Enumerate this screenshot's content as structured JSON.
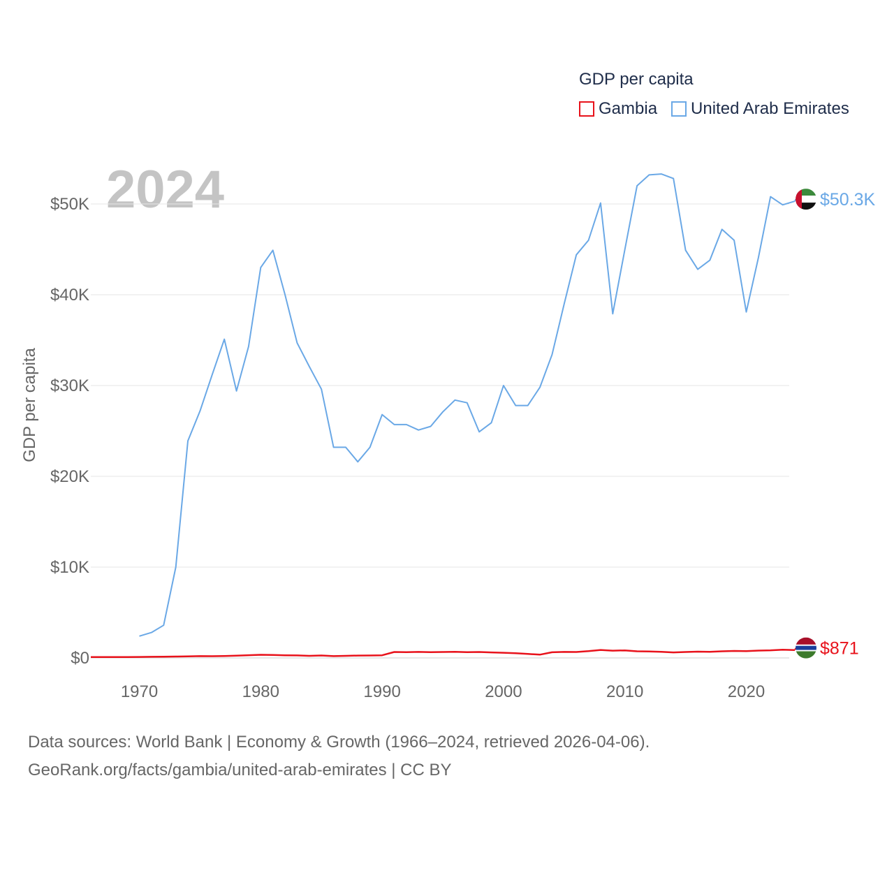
{
  "legend": {
    "title": "GDP per capita",
    "items": [
      {
        "label": "Gambia",
        "color": "#e8121b"
      },
      {
        "label": "United Arab Emirates",
        "color": "#6aa8e6"
      }
    ]
  },
  "watermark_year": "2024",
  "footer": {
    "line1": "Data sources: World Bank | Economy & Growth (1966–2024, retrieved 2026-04-06).",
    "line2": "GeoRank.org/facts/gambia/united-arab-emirates | CC BY"
  },
  "chart_data": {
    "type": "line",
    "title": "GDP per capita",
    "ylabel": "GDP per capita",
    "xlabel": "",
    "xlim": [
      1966,
      2024
    ],
    "ylim": [
      0,
      50000
    ],
    "xticks": [
      1970,
      1980,
      1990,
      2000,
      2010,
      2020
    ],
    "yticks": [
      {
        "value": 0,
        "label": "$0"
      },
      {
        "value": 10000,
        "label": "$10K"
      },
      {
        "value": 20000,
        "label": "$20K"
      },
      {
        "value": 30000,
        "label": "$30K"
      },
      {
        "value": 40000,
        "label": "$40K"
      },
      {
        "value": 50000,
        "label": "$50K"
      }
    ],
    "grid": true,
    "series": [
      {
        "name": "Gambia",
        "color": "#e8121b",
        "end_label": "$871",
        "flag": "gambia",
        "x": [
          1966,
          1967,
          1968,
          1969,
          1970,
          1971,
          1972,
          1973,
          1974,
          1975,
          1976,
          1977,
          1978,
          1979,
          1980,
          1981,
          1982,
          1983,
          1984,
          1985,
          1986,
          1987,
          1988,
          1989,
          1990,
          1991,
          1992,
          1993,
          1994,
          1995,
          1996,
          1997,
          1998,
          1999,
          2000,
          2001,
          2002,
          2003,
          2004,
          2005,
          2006,
          2007,
          2008,
          2009,
          2010,
          2011,
          2012,
          2013,
          2014,
          2015,
          2016,
          2017,
          2018,
          2019,
          2020,
          2021,
          2022,
          2023,
          2024
        ],
        "values": [
          90,
          95,
          90,
          100,
          110,
          120,
          130,
          150,
          180,
          200,
          190,
          210,
          250,
          300,
          350,
          320,
          290,
          280,
          230,
          270,
          200,
          230,
          260,
          270,
          290,
          650,
          640,
          660,
          640,
          650,
          680,
          640,
          650,
          610,
          570,
          520,
          440,
          360,
          620,
          660,
          650,
          750,
          880,
          800,
          830,
          730,
          710,
          680,
          610,
          650,
          690,
          680,
          730,
          770,
          750,
          810,
          840,
          900,
          871
        ]
      },
      {
        "name": "United Arab Emirates",
        "color": "#6aa8e6",
        "end_label": "$50.3K",
        "flag": "uae",
        "x": [
          1970,
          1971,
          1972,
          1973,
          1974,
          1975,
          1976,
          1977,
          1978,
          1979,
          1980,
          1981,
          1982,
          1983,
          1984,
          1985,
          1986,
          1987,
          1988,
          1989,
          1990,
          1991,
          1992,
          1993,
          1994,
          1995,
          1996,
          1997,
          1998,
          1999,
          2000,
          2001,
          2002,
          2003,
          2004,
          2005,
          2006,
          2007,
          2008,
          2009,
          2010,
          2011,
          2012,
          2013,
          2014,
          2015,
          2016,
          2017,
          2018,
          2019,
          2020,
          2021,
          2022,
          2023,
          2024
        ],
        "values": [
          2400,
          2800,
          3600,
          10000,
          23900,
          27200,
          31200,
          35100,
          29400,
          34300,
          43000,
          44900,
          40000,
          34700,
          32100,
          29600,
          23200,
          23200,
          21600,
          23200,
          26800,
          25700,
          25700,
          25100,
          25500,
          27100,
          28400,
          28100,
          24900,
          25900,
          30000,
          27800,
          27800,
          29800,
          33400,
          39000,
          44400,
          46000,
          50100,
          37900,
          45000,
          52000,
          53200,
          53300,
          52800,
          44900,
          42800,
          43800,
          47200,
          46000,
          38100,
          44100,
          50800,
          49900,
          50300
        ]
      }
    ]
  }
}
